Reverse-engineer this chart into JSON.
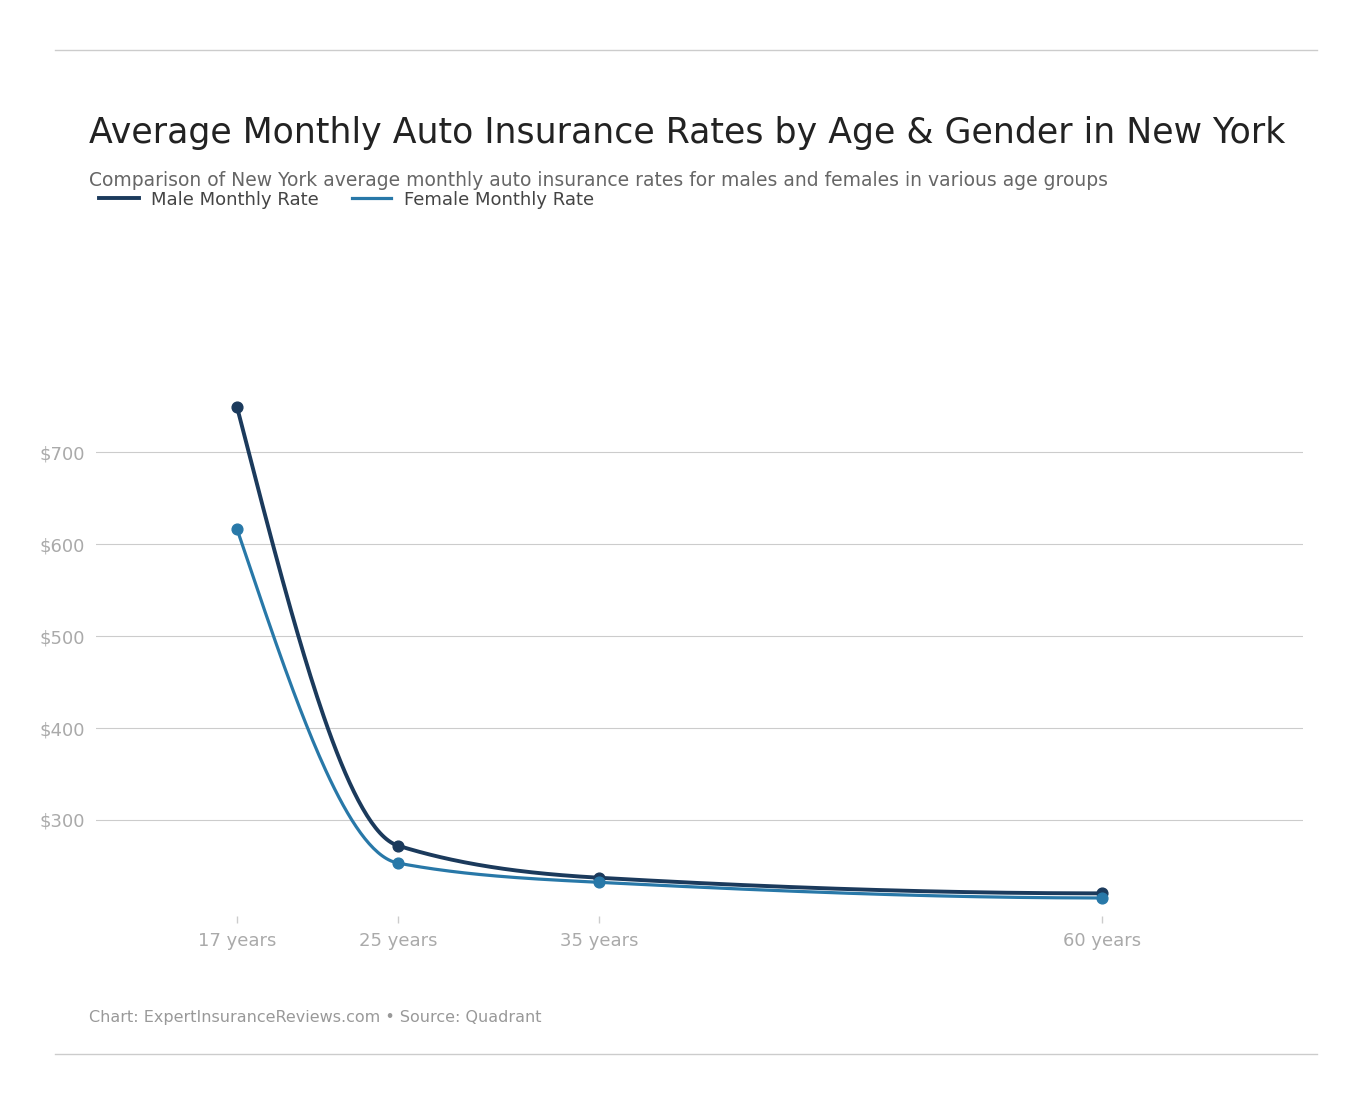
{
  "title": "Average Monthly Auto Insurance Rates by Age & Gender in New York",
  "subtitle": "Comparison of New York average monthly auto insurance rates for males and females in various age groups",
  "footer": "Chart: ExpertInsuranceReviews.com • Source: Quadrant",
  "ages": [
    17,
    25,
    35,
    60
  ],
  "age_labels": [
    "17 years",
    "25 years",
    "35 years",
    "60 years"
  ],
  "male_rates": [
    750,
    272,
    237,
    220
  ],
  "female_rates": [
    617,
    253,
    232,
    215
  ],
  "male_color": "#1b3a5c",
  "female_color": "#2878a8",
  "background_color": "#ffffff",
  "grid_color": "#cccccc",
  "title_color": "#222222",
  "subtitle_color": "#666666",
  "footer_color": "#999999",
  "ytick_values": [
    300,
    400,
    500,
    600,
    700
  ],
  "ylim": [
    195,
    820
  ],
  "xlim": [
    10,
    70
  ],
  "legend_male": "Male Monthly Rate",
  "legend_female": "Female Monthly Rate"
}
